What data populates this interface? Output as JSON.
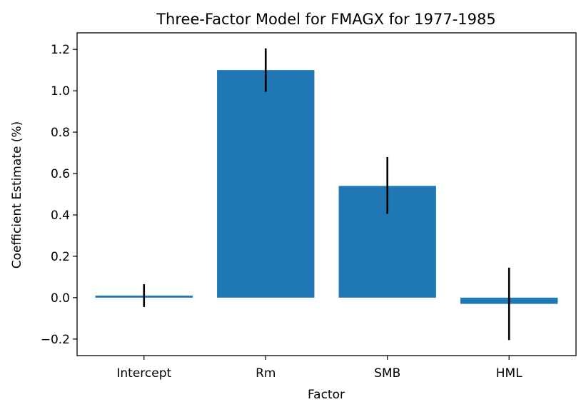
{
  "chart_data": {
    "type": "bar",
    "title": "Three-Factor Model for FMAGX for 1977-1985",
    "xlabel": "Factor",
    "ylabel": "Coefficient Estimate (%)",
    "categories": [
      "Intercept",
      "Rm",
      "SMB",
      "HML"
    ],
    "values": [
      0.01,
      1.1,
      0.54,
      -0.03
    ],
    "error_lower": [
      -0.045,
      0.995,
      0.405,
      -0.205
    ],
    "error_upper": [
      0.065,
      1.205,
      0.68,
      0.145
    ],
    "ylim": [
      -0.28,
      1.28
    ],
    "yticks": [
      -0.2,
      0.0,
      0.2,
      0.4,
      0.6,
      0.8,
      1.0,
      1.2
    ],
    "ytick_labels": [
      "−0.2",
      "0.0",
      "0.2",
      "0.4",
      "0.6",
      "0.8",
      "1.0",
      "1.2"
    ],
    "grid": false,
    "bar_color": "#1f77b4",
    "error_color": "#000000"
  }
}
